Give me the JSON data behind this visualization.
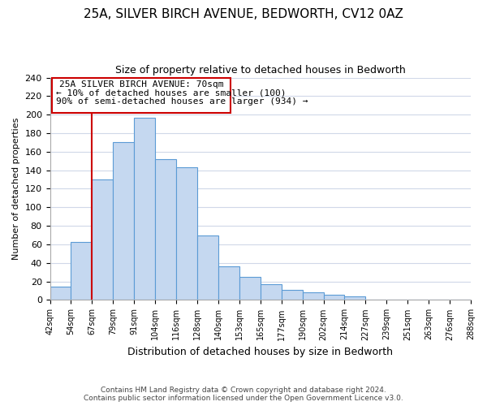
{
  "title": "25A, SILVER BIRCH AVENUE, BEDWORTH, CV12 0AZ",
  "subtitle": "Size of property relative to detached houses in Bedworth",
  "xlabel": "Distribution of detached houses by size in Bedworth",
  "ylabel": "Number of detached properties",
  "bin_labels": [
    "42sqm",
    "54sqm",
    "67sqm",
    "79sqm",
    "91sqm",
    "104sqm",
    "116sqm",
    "128sqm",
    "140sqm",
    "153sqm",
    "165sqm",
    "177sqm",
    "190sqm",
    "202sqm",
    "214sqm",
    "227sqm",
    "239sqm",
    "251sqm",
    "263sqm",
    "276sqm",
    "288sqm"
  ],
  "bar_heights": [
    14,
    63,
    130,
    170,
    197,
    152,
    143,
    70,
    36,
    25,
    17,
    11,
    8,
    6,
    4,
    0,
    0,
    0,
    0,
    0
  ],
  "bar_color": "#c5d8f0",
  "bar_edge_color": "#5b9bd5",
  "vline_x_index": 2,
  "vline_color": "#cc0000",
  "ylim": [
    0,
    240
  ],
  "yticks": [
    0,
    20,
    40,
    60,
    80,
    100,
    120,
    140,
    160,
    180,
    200,
    220,
    240
  ],
  "annotation_title": "25A SILVER BIRCH AVENUE: 70sqm",
  "annotation_line1": "← 10% of detached houses are smaller (100)",
  "annotation_line2": "90% of semi-detached houses are larger (934) →",
  "footer_line1": "Contains HM Land Registry data © Crown copyright and database right 2024.",
  "footer_line2": "Contains public sector information licensed under the Open Government Licence v3.0.",
  "background_color": "#ffffff",
  "grid_color": "#d0d8e8"
}
